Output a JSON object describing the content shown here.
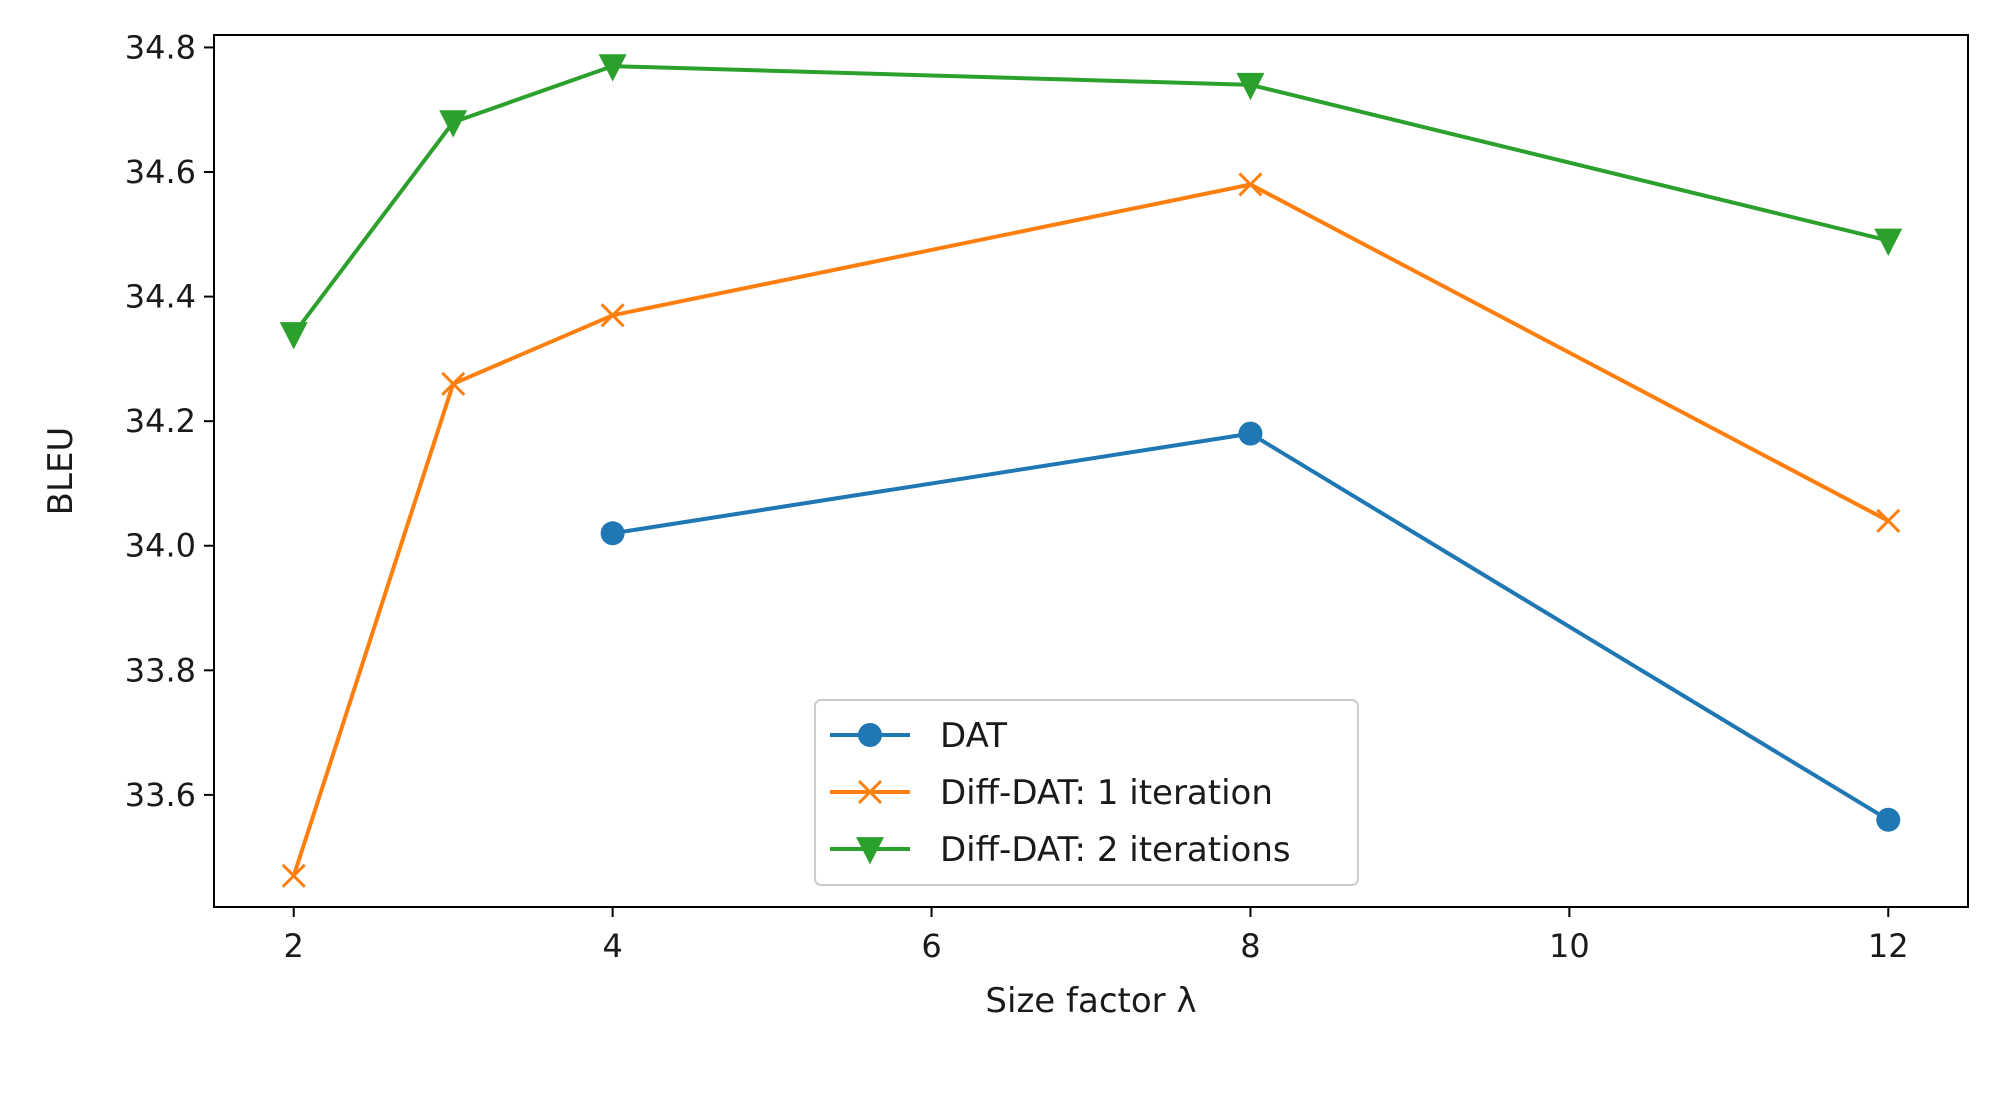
{
  "chart_data": {
    "type": "line",
    "title": "",
    "xlabel": "Size factor λ",
    "ylabel": "BLEU",
    "xlim": [
      1.5,
      12.5
    ],
    "ylim": [
      33.42,
      34.82
    ],
    "xticks": [
      2,
      4,
      6,
      8,
      10,
      12
    ],
    "yticks": [
      33.6,
      33.8,
      34.0,
      34.2,
      34.4,
      34.6,
      34.8
    ],
    "xtick_labels": [
      "2",
      "4",
      "6",
      "8",
      "10",
      "12"
    ],
    "ytick_labels": [
      "33.6",
      "33.8",
      "34.0",
      "34.2",
      "34.4",
      "34.6",
      "34.8"
    ],
    "grid": false,
    "legend_position": "bottom-center",
    "series": [
      {
        "name": "DAT",
        "color": "#1f77b4",
        "marker": "circle",
        "x": [
          4,
          8,
          12
        ],
        "y": [
          34.02,
          34.18,
          33.56
        ]
      },
      {
        "name": "Diff-DAT: 1 iteration",
        "color": "#ff7f0e",
        "marker": "x",
        "x": [
          2,
          3,
          4,
          8,
          12
        ],
        "y": [
          33.47,
          34.26,
          34.37,
          34.58,
          34.04
        ]
      },
      {
        "name": "Diff-DAT: 2 iterations",
        "color": "#2ca02c",
        "marker": "triangle-down",
        "x": [
          2,
          3,
          4,
          8,
          12
        ],
        "y": [
          34.34,
          34.68,
          34.77,
          34.74,
          34.49
        ]
      }
    ]
  }
}
